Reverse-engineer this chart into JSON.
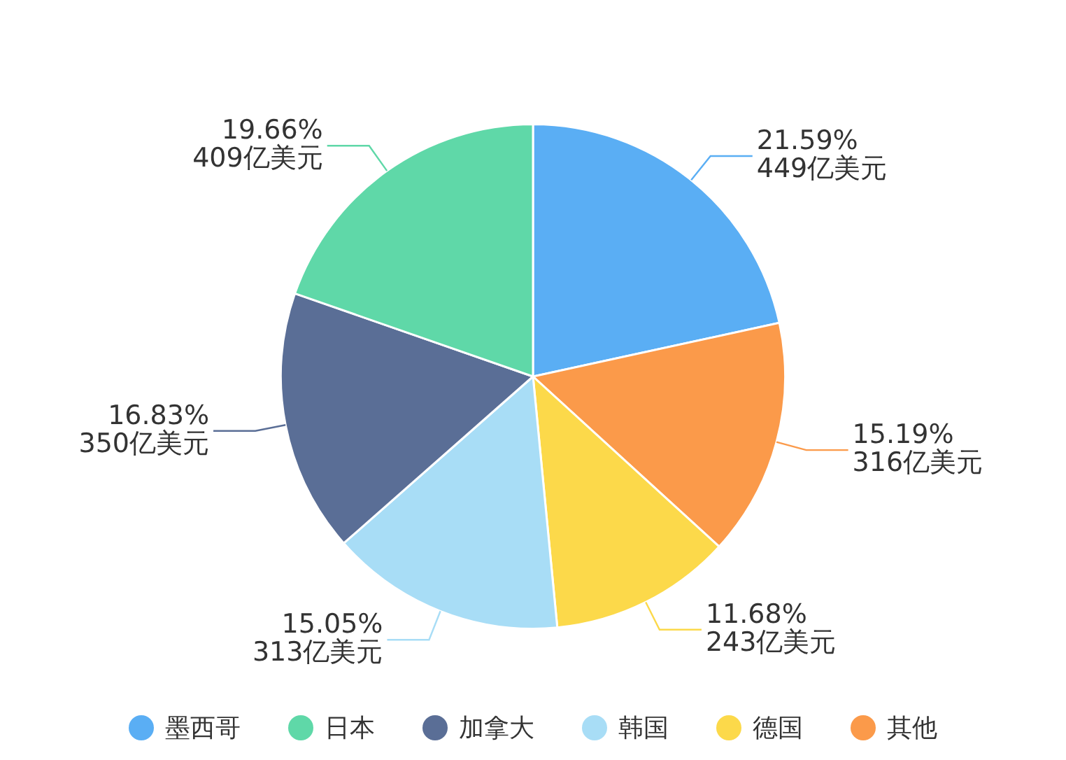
{
  "chart_data": {
    "type": "pie",
    "categories": [
      "墨西哥",
      "日本",
      "加拿大",
      "韩国",
      "德国",
      "其他"
    ],
    "values": [
      449,
      409,
      350,
      313,
      243,
      316
    ],
    "value_labels": [
      "21.59%\n449亿美元",
      "19.66%\n409亿美元",
      "16.83%\n350亿美元",
      "15.05%\n313亿美元",
      "11.68%\n243亿美元",
      "15.19%\n316亿美元"
    ],
    "colors": [
      "#5aaef4",
      "#5fd8a8",
      "#5a6e96",
      "#a8ddf6",
      "#fcd94a",
      "#fb9a4a"
    ],
    "legend": "bottom"
  }
}
